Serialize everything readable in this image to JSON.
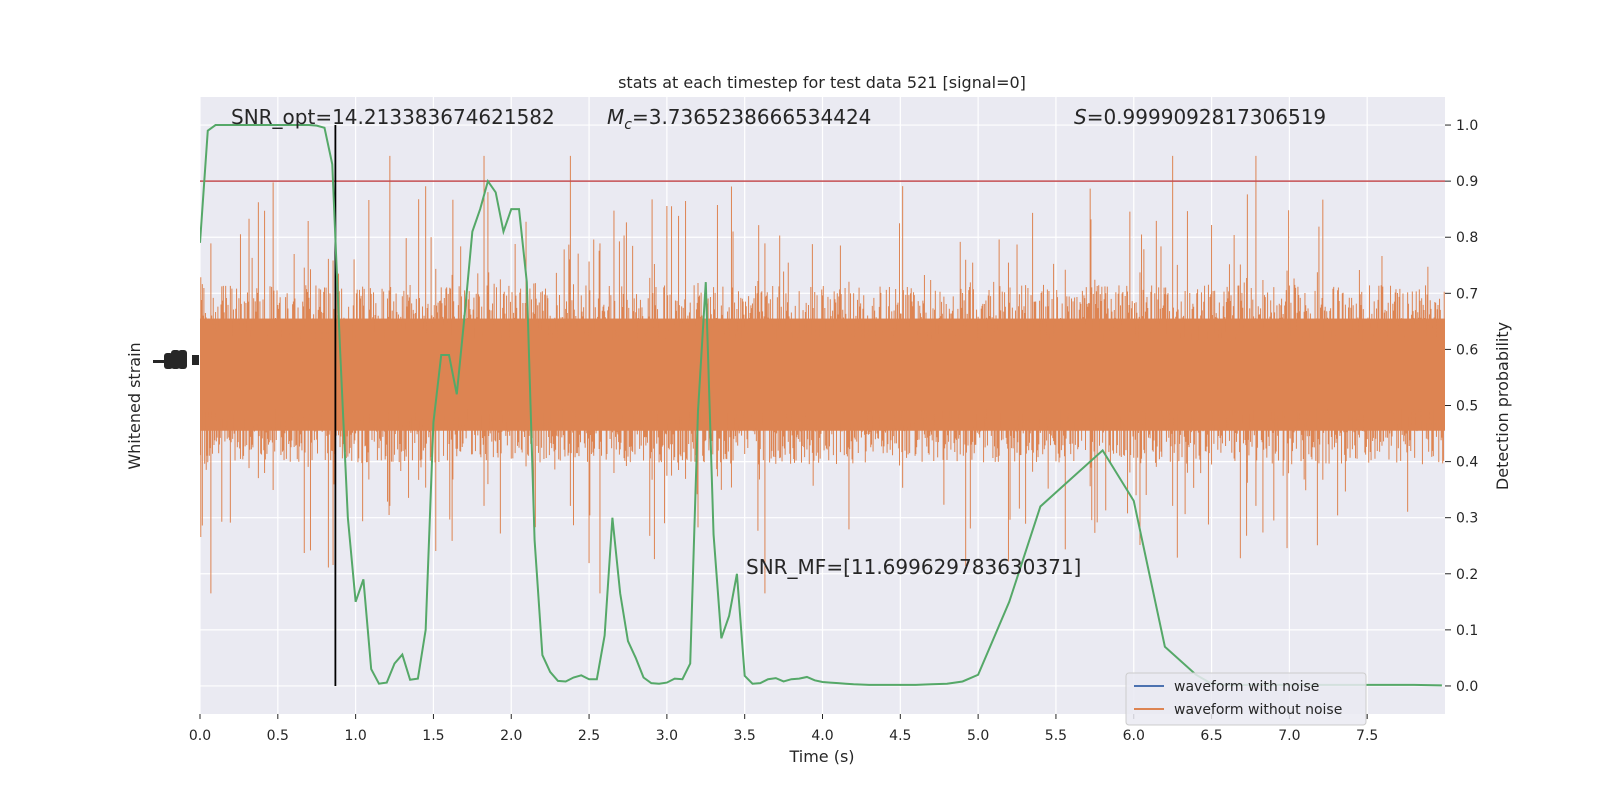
{
  "chart_data": {
    "type": "line",
    "title": "stats at each timestep for test data 521 [signal=0]",
    "xlabel": "Time (s)",
    "ylabel_left": "Whitened strain",
    "ylabel_right": "Detection probability",
    "xlim": [
      0,
      8.0
    ],
    "ylim_right": [
      -0.05,
      1.05
    ],
    "grid": true,
    "legend_position": "lower-right",
    "x_ticks": [
      0.0,
      0.5,
      1.0,
      1.5,
      2.0,
      2.5,
      3.0,
      3.5,
      4.0,
      4.5,
      5.0,
      5.5,
      6.0,
      6.5,
      7.0,
      7.5
    ],
    "x_tick_labels": [
      "0.0",
      "0.5",
      "1.0",
      "1.5",
      "2.0",
      "2.5",
      "3.0",
      "3.5",
      "4.0",
      "4.5",
      "5.0",
      "5.5",
      "6.0",
      "6.5",
      "7.0",
      "7.5"
    ],
    "y_right_ticks": [
      0.0,
      0.1,
      0.2,
      0.3,
      0.4,
      0.5,
      0.6,
      0.7,
      0.8,
      0.9,
      1.0
    ],
    "y_right_tick_labels": [
      "0.0",
      "0.1",
      "0.2",
      "0.3",
      "0.4",
      "0.5",
      "0.6",
      "0.7",
      "0.8",
      "0.9",
      "1.0"
    ],
    "annotations": {
      "snr_opt": "SNR_opt=14.213383674621582",
      "mc_prefix": "M",
      "mc_sub": "c",
      "mc_value": "=3.7365238666534424",
      "s_prefix": "S",
      "s_value": "=0.9999092817306519",
      "snr_mf": "SNR_MF=[11.699629783630371]"
    },
    "threshold": 0.9,
    "marker_time": 0.87,
    "legend": [
      {
        "label": "waveform with noise",
        "color": "#4c72b0"
      },
      {
        "label": "waveform without noise",
        "color": "#dd8452"
      }
    ],
    "colors": {
      "background": "#eaeaf2",
      "grid": "#ffffff",
      "noise": "#dd8452",
      "probability": "#55a868",
      "threshold": "#c44e52",
      "marker": "#000000"
    },
    "noise_band": {
      "center": 0.555,
      "core_halfwidth": 0.1,
      "envelope_halfwidth": 0.16,
      "peak_halfwidth": 0.39,
      "samples": 1600
    },
    "series": [
      {
        "name": "detection probability",
        "x": [
          0.0,
          0.05,
          0.1,
          0.15,
          0.2,
          0.25,
          0.3,
          0.35,
          0.4,
          0.45,
          0.5,
          0.55,
          0.6,
          0.65,
          0.7,
          0.75,
          0.8,
          0.85,
          0.9,
          0.95,
          1.0,
          1.05,
          1.1,
          1.15,
          1.2,
          1.25,
          1.3,
          1.35,
          1.4,
          1.45,
          1.5,
          1.55,
          1.6,
          1.65,
          1.7,
          1.75,
          1.8,
          1.85,
          1.9,
          1.95,
          2.0,
          2.05,
          2.1,
          2.15,
          2.2,
          2.25,
          2.3,
          2.35,
          2.4,
          2.45,
          2.5,
          2.55,
          2.6,
          2.65,
          2.7,
          2.75,
          2.8,
          2.85,
          2.9,
          2.95,
          3.0,
          3.05,
          3.1,
          3.15,
          3.2,
          3.25,
          3.3,
          3.35,
          3.4,
          3.45,
          3.5,
          3.55,
          3.6,
          3.65,
          3.7,
          3.75,
          3.8,
          3.85,
          3.9,
          3.95,
          4.0,
          4.05,
          4.1,
          4.15,
          4.2,
          4.3,
          4.4,
          4.5,
          4.6,
          4.7,
          4.8,
          4.9,
          5.0,
          5.2,
          5.4,
          5.6,
          5.8,
          6.0,
          6.2,
          6.4,
          6.5,
          6.6,
          6.65,
          6.7,
          6.75,
          6.8,
          6.85,
          6.9,
          6.95,
          7.0,
          7.1,
          7.2,
          7.4,
          7.6,
          7.8,
          7.98
        ],
        "y": [
          0.79,
          0.99,
          1.0,
          1.0,
          1.0,
          1.0,
          1.0,
          1.0,
          1.0,
          1.0,
          1.0,
          1.0,
          1.0,
          1.0,
          1.0,
          0.999,
          0.995,
          0.93,
          0.6,
          0.3,
          0.15,
          0.19,
          0.03,
          0.004,
          0.006,
          0.04,
          0.056,
          0.011,
          0.013,
          0.1,
          0.47,
          0.59,
          0.59,
          0.52,
          0.66,
          0.81,
          0.85,
          0.9,
          0.88,
          0.81,
          0.85,
          0.85,
          0.72,
          0.26,
          0.055,
          0.025,
          0.009,
          0.008,
          0.015,
          0.019,
          0.012,
          0.012,
          0.09,
          0.3,
          0.165,
          0.08,
          0.05,
          0.015,
          0.005,
          0.004,
          0.006,
          0.013,
          0.012,
          0.04,
          0.49,
          0.72,
          0.27,
          0.085,
          0.125,
          0.2,
          0.018,
          0.004,
          0.005,
          0.012,
          0.014,
          0.008,
          0.012,
          0.013,
          0.016,
          0.01,
          0.007,
          0.006,
          0.005,
          0.004,
          0.003,
          0.002,
          0.002,
          0.002,
          0.002,
          0.003,
          0.004,
          0.008,
          0.02,
          0.15,
          0.32,
          0.37,
          0.42,
          0.33,
          0.07,
          0.02,
          0.004,
          0.002,
          0.002,
          0.002,
          0.002,
          0.002,
          0.002,
          0.002,
          0.002,
          0.002,
          0.002,
          0.002,
          0.002,
          0.002,
          0.002,
          0.001
        ]
      },
      {
        "name": "waveform without noise",
        "x": [],
        "y": []
      },
      {
        "name": "waveform with noise",
        "x": [],
        "y": []
      }
    ]
  }
}
